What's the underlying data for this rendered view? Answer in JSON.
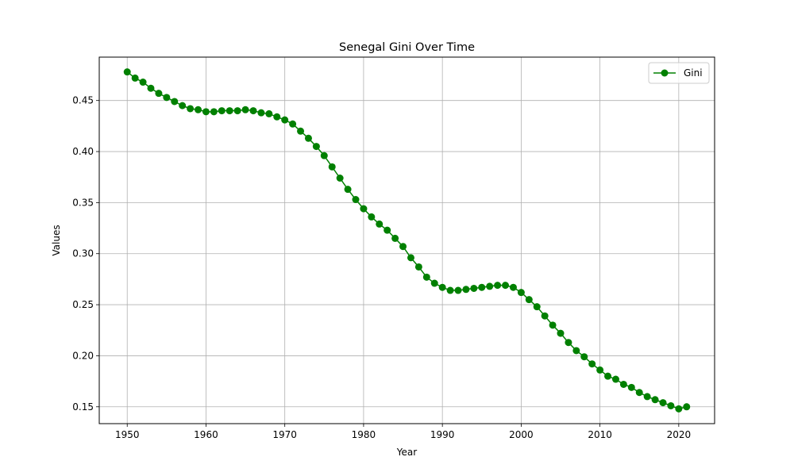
{
  "chart_data": {
    "type": "line",
    "title": "Senegal Gini Over Time",
    "xlabel": "Year",
    "ylabel": "Values",
    "xlim": [
      1946.45,
      2024.55
    ],
    "ylim": [
      0.1335,
      0.4925
    ],
    "xticks": [
      1950,
      1960,
      1970,
      1980,
      1990,
      2000,
      2010,
      2020
    ],
    "yticks": [
      0.15,
      0.2,
      0.25,
      0.3,
      0.35,
      0.4,
      0.45
    ],
    "ytick_labels": [
      "0.15",
      "0.20",
      "0.25",
      "0.30",
      "0.35",
      "0.40",
      "0.45"
    ],
    "grid": true,
    "legend": "top-right",
    "series": [
      {
        "name": "Gini",
        "color": "#008000",
        "marker": "circle",
        "x": [
          1950,
          1951,
          1952,
          1953,
          1954,
          1955,
          1956,
          1957,
          1958,
          1959,
          1960,
          1961,
          1962,
          1963,
          1964,
          1965,
          1966,
          1967,
          1968,
          1969,
          1970,
          1971,
          1972,
          1973,
          1974,
          1975,
          1976,
          1977,
          1978,
          1979,
          1980,
          1981,
          1982,
          1983,
          1984,
          1985,
          1986,
          1987,
          1988,
          1989,
          1990,
          1991,
          1992,
          1993,
          1994,
          1995,
          1996,
          1997,
          1998,
          1999,
          2000,
          2001,
          2002,
          2003,
          2004,
          2005,
          2006,
          2007,
          2008,
          2009,
          2010,
          2011,
          2012,
          2013,
          2014,
          2015,
          2016,
          2017,
          2018,
          2019,
          2020,
          2021
        ],
        "values": [
          0.478,
          0.472,
          0.468,
          0.462,
          0.457,
          0.453,
          0.449,
          0.445,
          0.442,
          0.441,
          0.439,
          0.439,
          0.44,
          0.44,
          0.44,
          0.441,
          0.44,
          0.438,
          0.437,
          0.434,
          0.431,
          0.427,
          0.42,
          0.413,
          0.405,
          0.396,
          0.385,
          0.374,
          0.363,
          0.353,
          0.344,
          0.336,
          0.329,
          0.323,
          0.315,
          0.307,
          0.296,
          0.287,
          0.277,
          0.271,
          0.267,
          0.264,
          0.264,
          0.265,
          0.266,
          0.267,
          0.268,
          0.269,
          0.269,
          0.267,
          0.262,
          0.255,
          0.248,
          0.239,
          0.23,
          0.222,
          0.213,
          0.205,
          0.199,
          0.192,
          0.186,
          0.18,
          0.177,
          0.172,
          0.169,
          0.164,
          0.16,
          0.157,
          0.154,
          0.151,
          0.148,
          0.15
        ]
      }
    ]
  }
}
